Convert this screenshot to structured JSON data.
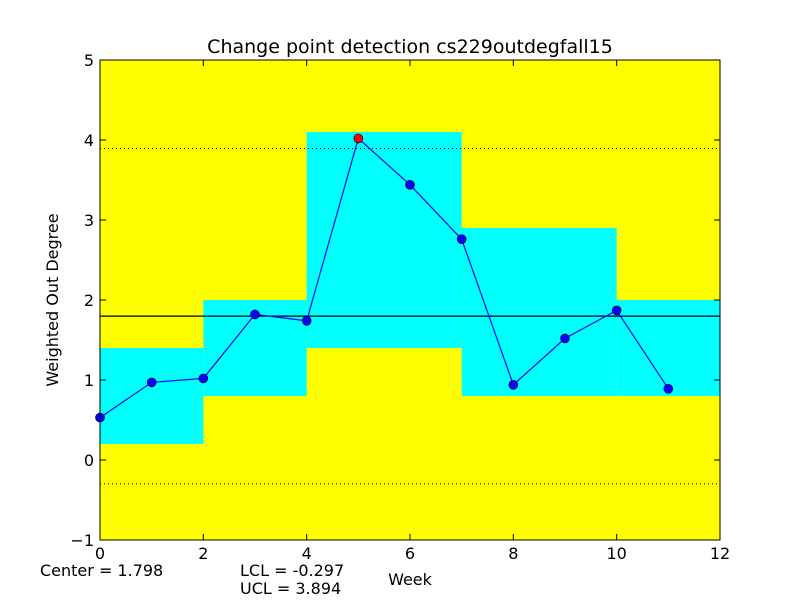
{
  "chart_data": {
    "type": "line",
    "title": "Change point detection cs229outdegfall15",
    "xlabel": "Week",
    "ylabel": "Weighted Out Degree",
    "xlim": [
      0,
      12
    ],
    "ylim": [
      -1,
      5
    ],
    "x_ticks": [
      0,
      2,
      4,
      6,
      8,
      10,
      12
    ],
    "y_ticks": [
      -1,
      0,
      1,
      2,
      3,
      4,
      5
    ],
    "x_tick_labels": [
      "0",
      "2",
      "4",
      "6",
      "8",
      "10",
      "12"
    ],
    "y_tick_labels": [
      "−1",
      "0",
      "1",
      "2",
      "3",
      "4",
      "5"
    ],
    "grid": false,
    "background_color": "#ffff00",
    "band_color": "#00ffff",
    "line_color": "#0000ff",
    "highlight_color": "#ff0000",
    "series": [
      {
        "x": [
          0,
          1,
          2,
          3,
          4,
          5,
          6,
          7,
          8,
          9,
          10,
          11
        ],
        "values": [
          0.53,
          0.97,
          1.02,
          1.82,
          1.74,
          4.02,
          3.44,
          2.76,
          0.94,
          1.52,
          1.87,
          0.89
        ]
      }
    ],
    "highlighted_points": [
      {
        "x": 5,
        "y": 4.02
      }
    ],
    "segments": [
      {
        "x0": 0,
        "x1": 2,
        "low": 0.2,
        "high": 1.4
      },
      {
        "x0": 2,
        "x1": 4,
        "low": 0.8,
        "high": 2.0
      },
      {
        "x0": 4,
        "x1": 7,
        "low": 1.4,
        "high": 4.1
      },
      {
        "x0": 7,
        "x1": 10,
        "low": 0.8,
        "high": 2.9
      },
      {
        "x0": 10,
        "x1": 12,
        "low": 0.8,
        "high": 2.0
      }
    ],
    "center_line": 1.798,
    "ucl_line": 3.894,
    "lcl_line": -0.297
  },
  "stats": {
    "center": "Center = 1.798",
    "lcl": "LCL = -0.297",
    "ucl": "UCL = 3.894"
  }
}
